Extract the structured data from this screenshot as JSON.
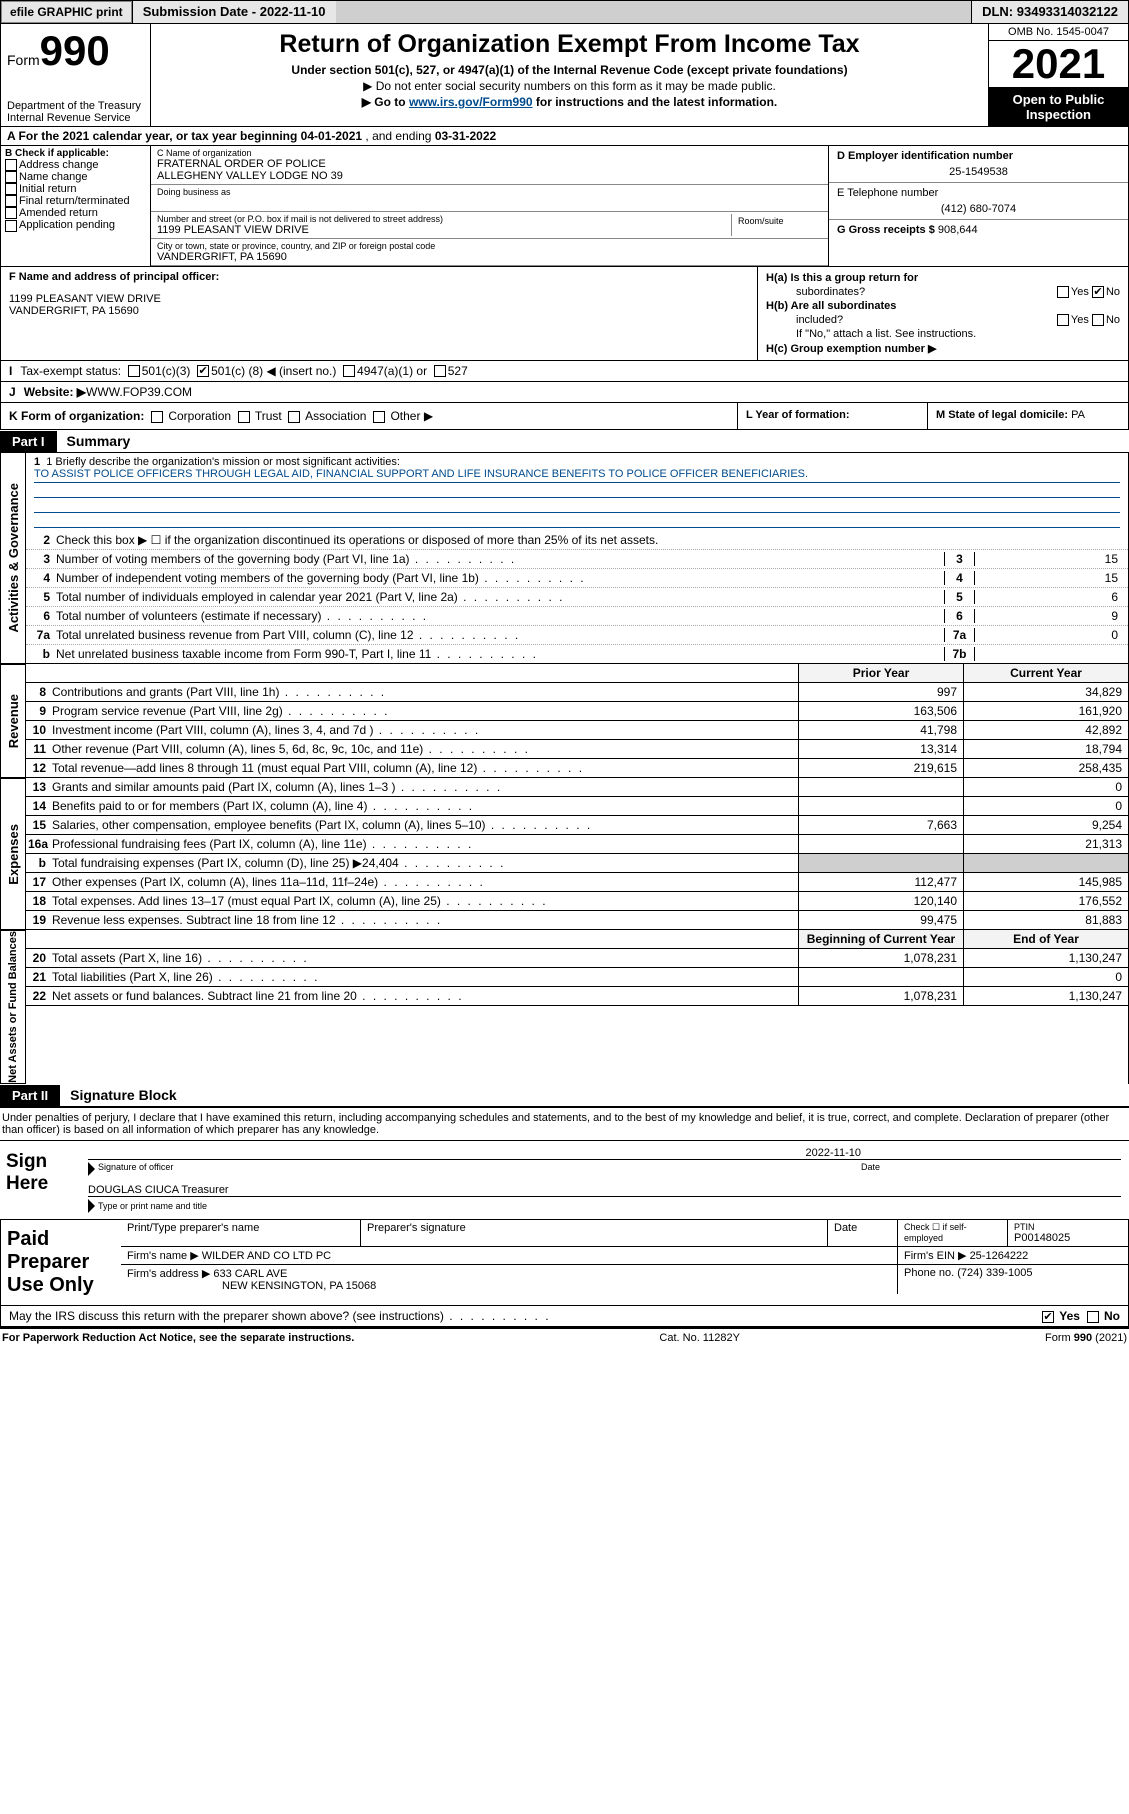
{
  "topbar": {
    "efile": "efile GRAPHIC print",
    "submission_label": "Submission Date - ",
    "submission_date": "2022-11-10",
    "dln_label": "DLN: ",
    "dln": "93493314032122"
  },
  "header": {
    "form_word": "Form",
    "form_number": "990",
    "dept": "Department of the Treasury Internal Revenue Service",
    "title": "Return of Organization Exempt From Income Tax",
    "subtitle1": "Under section 501(c), 527, or 4947(a)(1) of the Internal Revenue Code (except private foundations)",
    "subtitle2": "▶ Do not enter social security numbers on this form as it may be made public.",
    "subtitle3_pre": "▶ Go to ",
    "subtitle3_link": "www.irs.gov/Form990",
    "subtitle3_post": " for instructions and the latest information.",
    "omb": "OMB No. 1545-0047",
    "year": "2021",
    "open1": "Open to Public",
    "open2": "Inspection"
  },
  "period": {
    "label_a": "A For the 2021 calendar year, or tax year beginning ",
    "begin": "04-01-2021",
    "mid": " , and ending ",
    "end": "03-31-2022"
  },
  "colB": {
    "title": "B Check if applicable:",
    "opts": [
      "Address change",
      "Name change",
      "Initial return",
      "Final return/terminated",
      "Amended return",
      "Application pending"
    ]
  },
  "colC": {
    "name_label": "C Name of organization",
    "name1": "FRATERNAL ORDER OF POLICE",
    "name2": "ALLEGHENY VALLEY LODGE NO 39",
    "dba_label": "Doing business as",
    "street_label": "Number and street (or P.O. box if mail is not delivered to street address)",
    "street": "1199 PLEASANT VIEW DRIVE",
    "suite_label": "Room/suite",
    "city_label": "City or town, state or province, country, and ZIP or foreign postal code",
    "city": "VANDERGRIFT, PA  15690"
  },
  "colDE": {
    "d_label": "D Employer identification number",
    "ein": "25-1549538",
    "e_label": "E Telephone number",
    "phone": "(412) 680-7074",
    "g_label": "G Gross receipts $ ",
    "receipts": "908,644"
  },
  "rowF": {
    "label": "F Name and address of principal officer:",
    "addr1": "1199 PLEASANT VIEW DRIVE",
    "addr2": "VANDERGRIFT, PA  15690"
  },
  "rowH": {
    "ha1": "H(a)  Is this a group return for",
    "ha2": "subordinates?",
    "hb1": "H(b)  Are all subordinates",
    "hb2": "included?",
    "hb3": "If \"No,\" attach a list. See instructions.",
    "hc": "H(c)  Group exemption number ▶",
    "yes": "Yes",
    "no": "No"
  },
  "rowI": {
    "tag": "I",
    "label": "Tax-exempt status:",
    "c3": "501(c)(3)",
    "c_pre": "501(c) ( ",
    "c_num": "8",
    "c_post": " ) ◀ (insert no.)",
    "a1": "4947(a)(1) or",
    "a527": "527"
  },
  "rowJ": {
    "tag": "J",
    "label": "Website: ▶ ",
    "value": "WWW.FOP39.COM"
  },
  "rowK": {
    "label": "K Form of organization:",
    "opts": [
      "Corporation",
      "Trust",
      "Association",
      "Other ▶"
    ]
  },
  "rowL": {
    "label": "L Year of formation:"
  },
  "rowM": {
    "label": "M State of legal domicile: ",
    "value": "PA"
  },
  "part1": {
    "tag": "Part I",
    "name": "Summary"
  },
  "sideA": "Activities & Governance",
  "sideB": "Revenue",
  "sideC": "Expenses",
  "sideD": "Net Assets or Fund Balances",
  "sum": {
    "l1a": "1  Briefly describe the organization's mission or most significant activities:",
    "l1b": "TO ASSIST POLICE OFFICERS THROUGH LEGAL AID, FINANCIAL SUPPORT AND LIFE INSURANCE BENEFITS TO POLICE OFFICER BENEFICIARIES.",
    "l2": "Check this box ▶ ☐  if the organization discontinued its operations or disposed of more than 25% of its net assets.",
    "l3": "Number of voting members of the governing body (Part VI, line 1a)",
    "l4": "Number of independent voting members of the governing body (Part VI, line 1b)",
    "l5": "Total number of individuals employed in calendar year 2021 (Part V, line 2a)",
    "l6": "Total number of volunteers (estimate if necessary)",
    "l7a": "Total unrelated business revenue from Part VIII, column (C), line 12",
    "l7b": "Net unrelated business taxable income from Form 990-T, Part I, line 11",
    "v3": "15",
    "v4": "15",
    "v5": "6",
    "v6": "9",
    "v7a": "0",
    "v7b": ""
  },
  "colhdr": {
    "prior": "Prior Year",
    "current": "Current Year"
  },
  "rev": [
    {
      "n": "8",
      "d": "Contributions and grants (Part VIII, line 1h)",
      "p": "997",
      "c": "34,829"
    },
    {
      "n": "9",
      "d": "Program service revenue (Part VIII, line 2g)",
      "p": "163,506",
      "c": "161,920"
    },
    {
      "n": "10",
      "d": "Investment income (Part VIII, column (A), lines 3, 4, and 7d )",
      "p": "41,798",
      "c": "42,892"
    },
    {
      "n": "11",
      "d": "Other revenue (Part VIII, column (A), lines 5, 6d, 8c, 9c, 10c, and 11e)",
      "p": "13,314",
      "c": "18,794"
    },
    {
      "n": "12",
      "d": "Total revenue—add lines 8 through 11 (must equal Part VIII, column (A), line 12)",
      "p": "219,615",
      "c": "258,435"
    }
  ],
  "exp": [
    {
      "n": "13",
      "d": "Grants and similar amounts paid (Part IX, column (A), lines 1–3 )",
      "p": "",
      "c": "0"
    },
    {
      "n": "14",
      "d": "Benefits paid to or for members (Part IX, column (A), line 4)",
      "p": "",
      "c": "0"
    },
    {
      "n": "15",
      "d": "Salaries, other compensation, employee benefits (Part IX, column (A), lines 5–10)",
      "p": "7,663",
      "c": "9,254"
    },
    {
      "n": "16a",
      "d": "Professional fundraising fees (Part IX, column (A), line 11e)",
      "p": "",
      "c": "21,313"
    },
    {
      "n": "b",
      "d": "Total fundraising expenses (Part IX, column (D), line 25) ▶24,404",
      "p": "SHADE",
      "c": "SHADE"
    },
    {
      "n": "17",
      "d": "Other expenses (Part IX, column (A), lines 11a–11d, 11f–24e)",
      "p": "112,477",
      "c": "145,985"
    },
    {
      "n": "18",
      "d": "Total expenses. Add lines 13–17 (must equal Part IX, column (A), line 25)",
      "p": "120,140",
      "c": "176,552"
    },
    {
      "n": "19",
      "d": "Revenue less expenses. Subtract line 18 from line 12",
      "p": "99,475",
      "c": "81,883"
    }
  ],
  "colhdr2": {
    "beg": "Beginning of Current Year",
    "end": "End of Year"
  },
  "net": [
    {
      "n": "20",
      "d": "Total assets (Part X, line 16)",
      "p": "1,078,231",
      "c": "1,130,247"
    },
    {
      "n": "21",
      "d": "Total liabilities (Part X, line 26)",
      "p": "",
      "c": "0"
    },
    {
      "n": "22",
      "d": "Net assets or fund balances. Subtract line 21 from line 20",
      "p": "1,078,231",
      "c": "1,130,247"
    }
  ],
  "part2": {
    "tag": "Part II",
    "name": "Signature Block"
  },
  "sig": {
    "intro": "Under penalties of perjury, I declare that I have examined this return, including accompanying schedules and statements, and to the best of my knowledge and belief, it is true, correct, and complete. Declaration of preparer (other than officer) is based on all information of which preparer has any knowledge.",
    "sign_here": "Sign Here",
    "sig_officer": "Signature of officer",
    "date_label": "Date",
    "date": "2022-11-10",
    "name": "DOUGLAS CIUCA  Treasurer",
    "name_label": "Type or print name and title"
  },
  "prep": {
    "label": "Paid Preparer Use Only",
    "h1": "Print/Type preparer's name",
    "h2": "Preparer's signature",
    "h3": "Date",
    "h4a": "Check ☐ if self-employed",
    "h4b": "PTIN",
    "ptin": "P00148025",
    "firm_name_lbl": "Firm's name    ▶ ",
    "firm_name": "WILDER AND CO LTD PC",
    "firm_ein_lbl": "Firm's EIN ▶ ",
    "firm_ein": "25-1264222",
    "firm_addr_lbl": "Firm's address ▶ ",
    "firm_addr1": "633 CARL AVE",
    "firm_addr2": "NEW KENSINGTON, PA  15068",
    "phone_lbl": "Phone no. ",
    "phone": "(724) 339-1005"
  },
  "discuss": {
    "q": "May the IRS discuss this return with the preparer shown above? (see instructions)",
    "yes": "Yes",
    "no": "No"
  },
  "footer": {
    "left": "For Paperwork Reduction Act Notice, see the separate instructions.",
    "mid": "Cat. No. 11282Y",
    "right": "Form 990 (2021)"
  }
}
